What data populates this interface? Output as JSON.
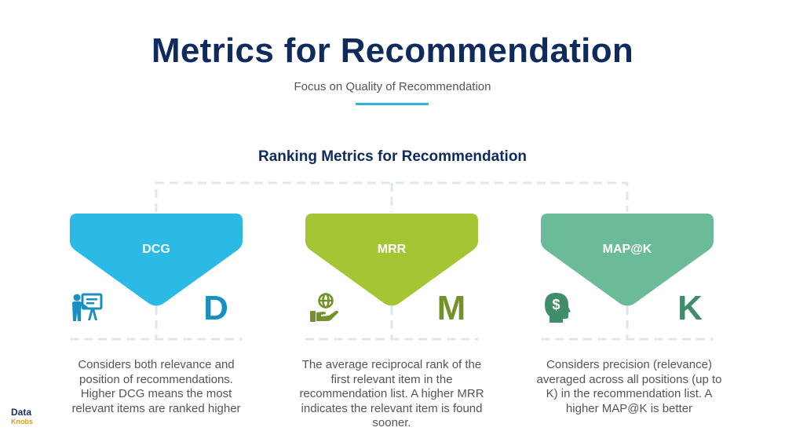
{
  "header": {
    "title": "Metrics for Recommendation",
    "subtitle": "Focus on Quality of Recommendation"
  },
  "section_heading": "Ranking Metrics for Recommendation",
  "cards": [
    {
      "label": "DCG",
      "letter": "D",
      "icon": "presentation-icon",
      "color": "#2bbae6",
      "letter_color": "#1b8fc1",
      "description": "Considers both relevance and position of recommendations. Higher DCG means the most relevant items are ranked higher"
    },
    {
      "label": "MRR",
      "letter": "M",
      "icon": "globe-hand-icon",
      "color": "#a4c534",
      "letter_color": "#74922a",
      "description": "The average reciprocal rank of the first relevant item in the recommendation list. A higher MRR indicates the relevant item is found sooner."
    },
    {
      "label": "MAP@K",
      "letter": "K",
      "icon": "dollar-head-icon",
      "color": "#6bbb98",
      "letter_color": "#3f8e69",
      "description": "Considers precision (relevance) averaged across all positions (up to K) in the recommendation list. A higher MAP@K is better"
    }
  ],
  "logo": {
    "line1": "Data",
    "line2": "Knobs"
  },
  "colors": {
    "title": "#0f2a5c",
    "accent_underline": "#29b6e6",
    "connector": "#dfe7ee"
  }
}
